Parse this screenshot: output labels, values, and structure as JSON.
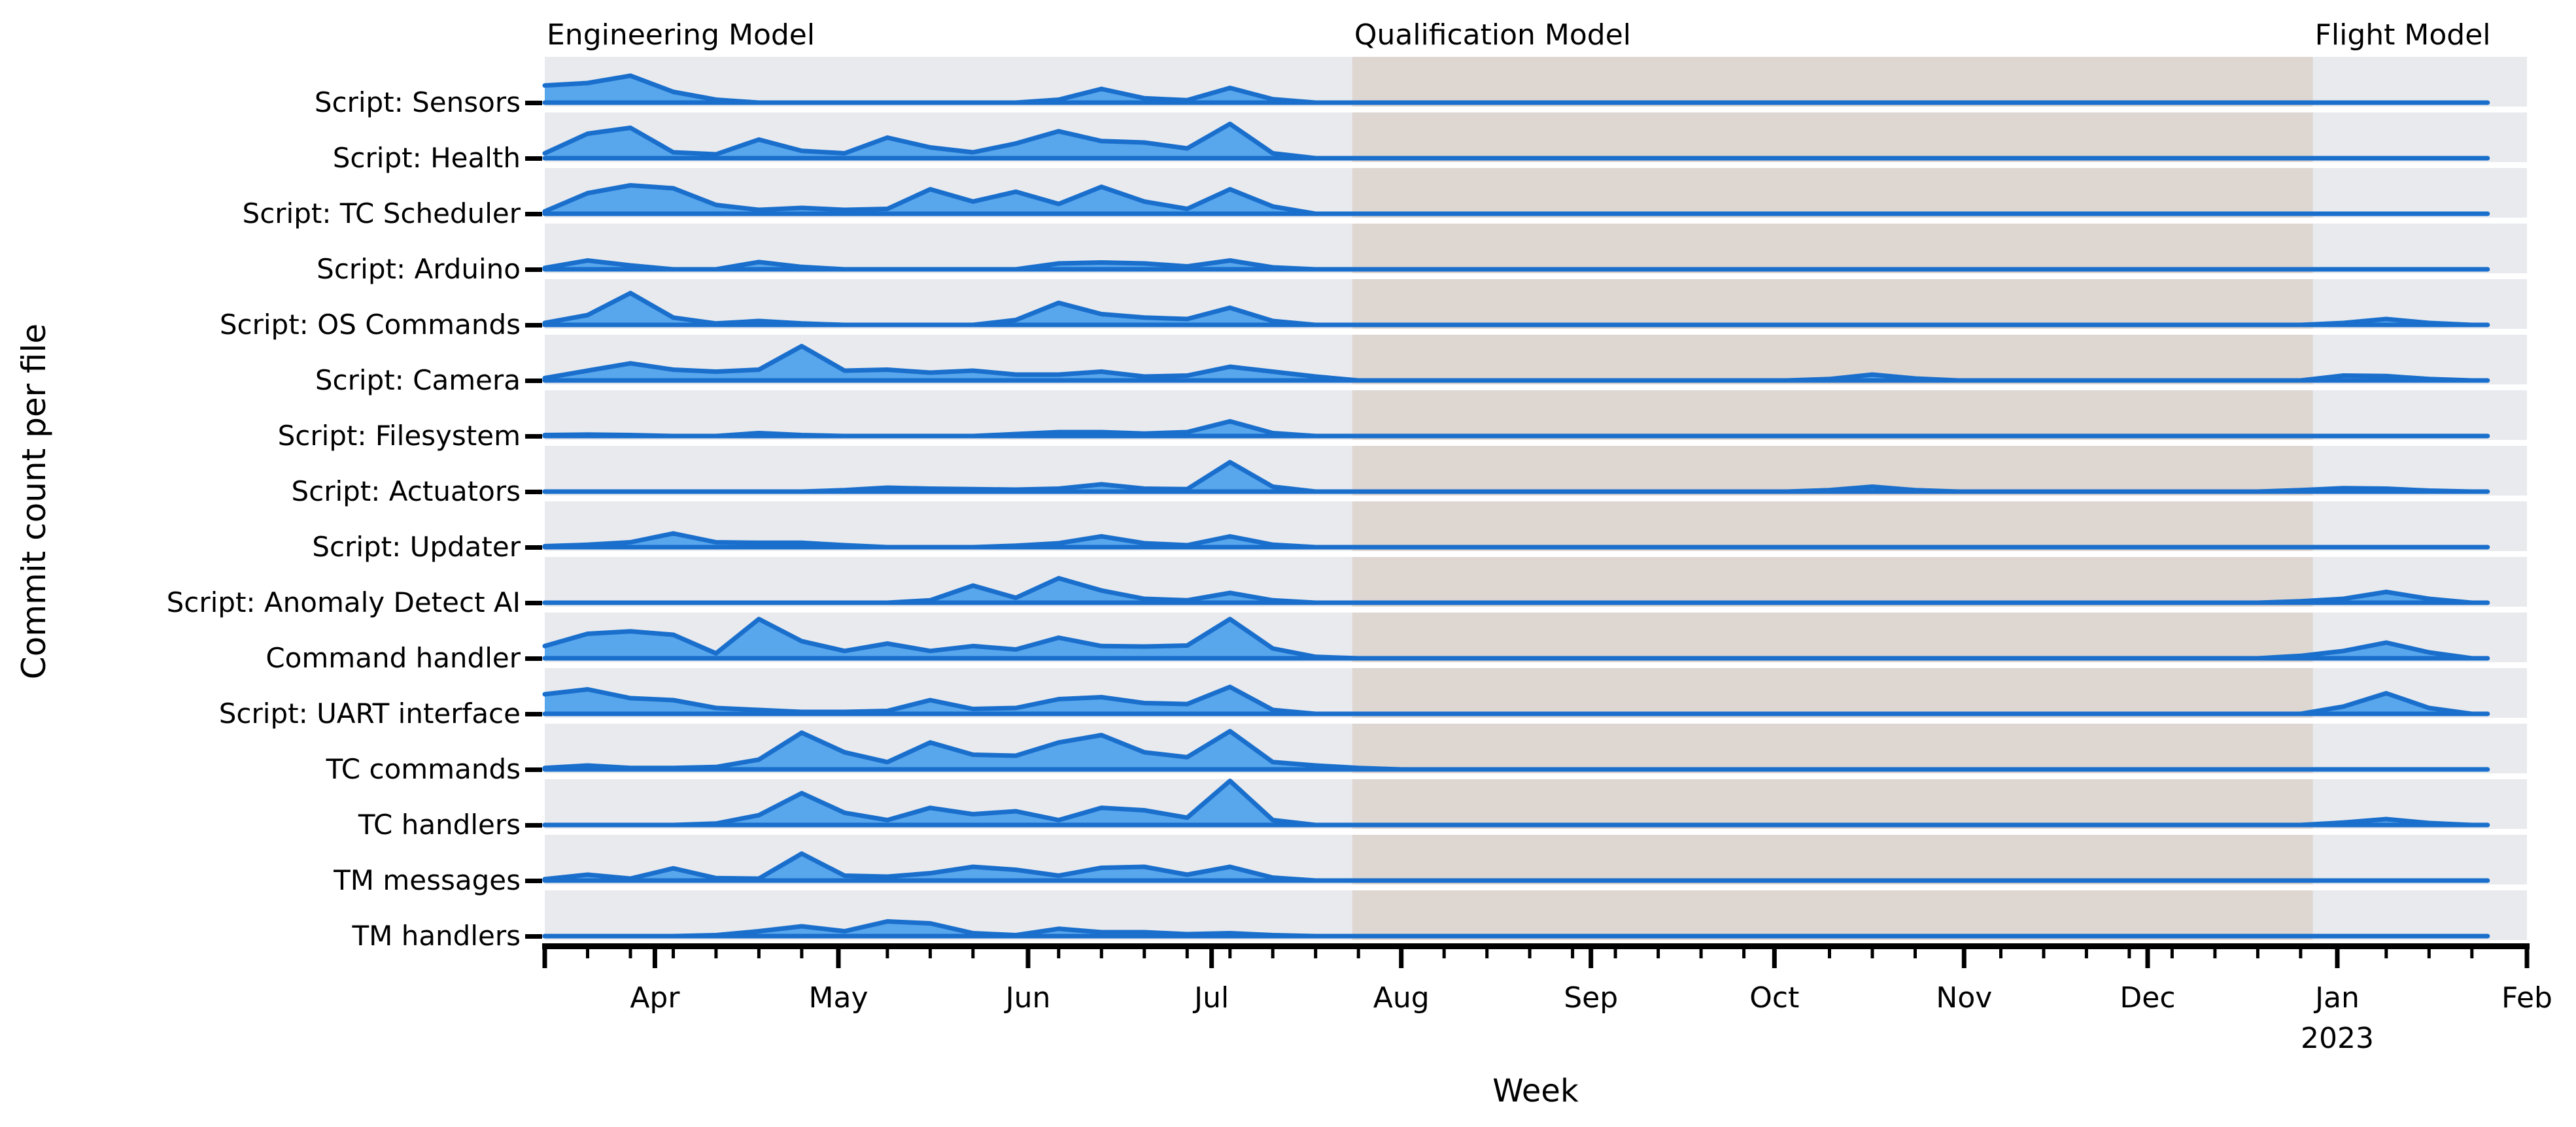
{
  "figure": {
    "background": "#ffffff",
    "kind": "ridgeline commit-activity chart"
  },
  "colors": {
    "band_background": "#e8eaee",
    "qualification_shading": "#ded6d1",
    "area_fill": "#58a6ec",
    "area_stroke": "#1a6fcc",
    "axis": "#000000",
    "text": "#000000"
  },
  "chart_data": {
    "type": "area",
    "variant": "ridgeline",
    "title": "",
    "xlabel": "Week",
    "ylabel": "Commit count per file",
    "x_start": "2022-03-14",
    "x_end": "2023-02-01",
    "x_total_days": 324,
    "x_step_days": 7,
    "grid": false,
    "legend": "none",
    "y_scale_note": "no y ticks shown; values are relative weekly commit-count heights, 10 = full band height",
    "x_ticks_months": [
      {
        "label": "Apr",
        "day": 18
      },
      {
        "label": "May",
        "day": 48
      },
      {
        "label": "Jun",
        "day": 79
      },
      {
        "label": "Jul",
        "day": 109
      },
      {
        "label": "Aug",
        "day": 140
      },
      {
        "label": "Sep",
        "day": 171
      },
      {
        "label": "Oct",
        "day": 201
      },
      {
        "label": "Nov",
        "day": 232
      },
      {
        "label": "Dec",
        "day": 262
      },
      {
        "label": "Jan",
        "day": 293,
        "year": "2023"
      },
      {
        "label": "Feb",
        "day": 324
      }
    ],
    "x_tick_year": {
      "label": "2023",
      "under": "Jan"
    },
    "phases": [
      {
        "name": "Engineering Model",
        "start_day": 0,
        "end_day": 132,
        "shaded": false
      },
      {
        "name": "Qualification Model",
        "start_day": 132,
        "end_day": 289,
        "shaded": true
      },
      {
        "name": "Flight Model",
        "start_day": 289,
        "end_day": 324,
        "shaded": false
      }
    ],
    "series": [
      {
        "name": "Script: Sensors",
        "values": [
          3.5,
          4,
          5.5,
          2.2,
          0.6,
          0,
          0,
          0,
          0,
          0,
          0,
          0,
          0.6,
          2.8,
          0.9,
          0.5,
          3,
          0.7,
          0,
          0,
          0,
          0,
          0,
          0,
          0,
          0,
          0,
          0,
          0,
          0,
          0,
          0,
          0,
          0,
          0,
          0,
          0,
          0,
          0,
          0,
          0,
          0,
          0,
          0,
          0,
          0
        ]
      },
      {
        "name": "Script: Health",
        "values": [
          1,
          5,
          6.2,
          1.2,
          0.8,
          3.8,
          1.5,
          1,
          4.2,
          2.2,
          1.2,
          3,
          5.5,
          3.5,
          3.2,
          2,
          7,
          1,
          0,
          0,
          0,
          0,
          0,
          0,
          0,
          0,
          0,
          0,
          0,
          0,
          0,
          0,
          0,
          0,
          0,
          0,
          0,
          0,
          0,
          0,
          0,
          0,
          0,
          0,
          0,
          0
        ]
      },
      {
        "name": "Script: TC Scheduler",
        "values": [
          0.5,
          4.2,
          5.8,
          5.2,
          1.8,
          0.8,
          1.2,
          0.8,
          1,
          5,
          2.5,
          4.5,
          2,
          5.5,
          2.5,
          1,
          5,
          1.5,
          0,
          0,
          0,
          0,
          0,
          0,
          0,
          0,
          0,
          0,
          0,
          0,
          0,
          0,
          0,
          0,
          0,
          0,
          0,
          0,
          0,
          0,
          0,
          0,
          0,
          0,
          0,
          0
        ]
      },
      {
        "name": "Script: Arduino",
        "values": [
          0.3,
          1.8,
          0.8,
          0,
          0,
          1.5,
          0.5,
          0,
          0,
          0,
          0,
          0,
          1.2,
          1.4,
          1.2,
          0.6,
          1.8,
          0.4,
          0,
          0,
          0,
          0,
          0,
          0,
          0,
          0,
          0,
          0,
          0,
          0,
          0,
          0,
          0,
          0,
          0,
          0,
          0,
          0,
          0,
          0,
          0,
          0,
          0,
          0,
          0,
          0
        ]
      },
      {
        "name": "Script: OS Commands",
        "values": [
          0.4,
          2,
          6.5,
          1.5,
          0.3,
          0.8,
          0.3,
          0,
          0,
          0,
          0,
          1,
          4.5,
          2.2,
          1.5,
          1.2,
          3.5,
          0.8,
          0,
          0,
          0,
          0,
          0,
          0,
          0,
          0,
          0,
          0,
          0,
          0,
          0,
          0,
          0,
          0,
          0,
          0,
          0,
          0,
          0,
          0,
          0,
          0,
          0.4,
          1.2,
          0.4,
          0
        ]
      },
      {
        "name": "Script: Camera",
        "values": [
          0.5,
          2,
          3.5,
          2.2,
          1.8,
          2.2,
          7,
          2,
          2.2,
          1.6,
          2,
          1.2,
          1.2,
          1.8,
          0.8,
          1,
          2.8,
          1.8,
          0.8,
          0,
          0,
          0,
          0,
          0,
          0,
          0,
          0,
          0,
          0,
          0,
          0.3,
          1.2,
          0.4,
          0,
          0,
          0,
          0,
          0,
          0,
          0,
          0,
          0,
          1,
          0.9,
          0.3,
          0
        ]
      },
      {
        "name": "Script: Filesystem",
        "values": [
          0.2,
          0.3,
          0.2,
          0,
          0,
          0.6,
          0.2,
          0,
          0,
          0,
          0,
          0.4,
          0.8,
          0.8,
          0.5,
          0.8,
          3,
          0.6,
          0,
          0,
          0,
          0,
          0,
          0,
          0,
          0,
          0,
          0,
          0,
          0,
          0,
          0,
          0,
          0,
          0,
          0,
          0,
          0,
          0,
          0,
          0,
          0,
          0,
          0,
          0,
          0
        ]
      },
      {
        "name": "Script: Actuators",
        "values": [
          0,
          0,
          0,
          0,
          0,
          0,
          0,
          0.3,
          0.8,
          0.6,
          0.5,
          0.4,
          0.6,
          1.5,
          0.6,
          0.5,
          6,
          1,
          0,
          0,
          0,
          0,
          0,
          0,
          0,
          0,
          0,
          0,
          0,
          0,
          0.3,
          1,
          0.3,
          0,
          0,
          0,
          0,
          0,
          0,
          0,
          0,
          0.3,
          0.7,
          0.6,
          0.2,
          0
        ]
      },
      {
        "name": "Script: Updater",
        "values": [
          0.2,
          0.5,
          1,
          2.8,
          1,
          0.9,
          0.9,
          0.4,
          0,
          0,
          0,
          0.3,
          0.8,
          2.2,
          0.8,
          0.4,
          2.2,
          0.5,
          0,
          0,
          0,
          0,
          0,
          0,
          0,
          0,
          0,
          0,
          0,
          0,
          0,
          0,
          0,
          0,
          0,
          0,
          0,
          0,
          0,
          0,
          0,
          0,
          0,
          0,
          0,
          0
        ]
      },
      {
        "name": "Script: Anomaly Detect AI",
        "values": [
          0,
          0,
          0,
          0,
          0,
          0,
          0,
          0,
          0,
          0.5,
          3.5,
          1,
          5,
          2.5,
          0.8,
          0.5,
          2,
          0.5,
          0,
          0,
          0,
          0,
          0,
          0,
          0,
          0,
          0,
          0,
          0,
          0,
          0,
          0,
          0,
          0,
          0,
          0,
          0,
          0,
          0,
          0,
          0,
          0.3,
          0.8,
          2.2,
          0.8,
          0
        ]
      },
      {
        "name": "Command handler",
        "values": [
          2.5,
          5,
          5.5,
          4.8,
          1,
          8,
          3.5,
          1.5,
          3,
          1.5,
          2.5,
          1.8,
          4.2,
          2.5,
          2.4,
          2.6,
          8,
          2,
          0.3,
          0,
          0,
          0,
          0,
          0,
          0,
          0,
          0,
          0,
          0,
          0,
          0,
          0,
          0,
          0,
          0,
          0,
          0,
          0,
          0,
          0,
          0,
          0.5,
          1.5,
          3.2,
          1.2,
          0
        ]
      },
      {
        "name": "Script: UART interface",
        "values": [
          4,
          5,
          3.2,
          2.8,
          1.2,
          0.8,
          0.4,
          0.4,
          0.6,
          2.8,
          1,
          1.2,
          3,
          3.4,
          2.2,
          2,
          5.5,
          0.8,
          0,
          0,
          0,
          0,
          0,
          0,
          0,
          0,
          0,
          0,
          0,
          0,
          0,
          0,
          0,
          0,
          0,
          0,
          0,
          0,
          0,
          0,
          0,
          0,
          1.5,
          4.2,
          1.2,
          0
        ]
      },
      {
        "name": "TC commands",
        "values": [
          0.3,
          0.8,
          0.3,
          0.3,
          0.5,
          2,
          7.5,
          3.5,
          1.5,
          5.5,
          3,
          2.8,
          5.5,
          7,
          3.5,
          2.5,
          7.8,
          1.5,
          0.8,
          0.3,
          0,
          0,
          0,
          0,
          0,
          0,
          0,
          0,
          0,
          0,
          0,
          0,
          0,
          0,
          0,
          0,
          0,
          0,
          0,
          0,
          0,
          0,
          0,
          0,
          0,
          0
        ]
      },
      {
        "name": "TC handlers",
        "values": [
          0,
          0,
          0,
          0,
          0.3,
          2,
          6.5,
          2.5,
          1,
          3.5,
          2.2,
          2.8,
          1,
          3.5,
          3,
          1.5,
          9,
          1,
          0,
          0,
          0,
          0,
          0,
          0,
          0,
          0,
          0,
          0,
          0,
          0,
          0,
          0,
          0,
          0,
          0,
          0,
          0,
          0,
          0,
          0,
          0,
          0,
          0.5,
          1.2,
          0.4,
          0
        ]
      },
      {
        "name": "TM messages",
        "values": [
          0.3,
          1.2,
          0.4,
          2.5,
          0.5,
          0.4,
          5.5,
          1,
          0.8,
          1.5,
          2.8,
          2.2,
          1,
          2.6,
          2.8,
          1.2,
          2.8,
          0.6,
          0,
          0,
          0,
          0,
          0,
          0,
          0,
          0,
          0,
          0,
          0,
          0,
          0,
          0,
          0,
          0,
          0,
          0,
          0,
          0,
          0,
          0,
          0,
          0,
          0,
          0,
          0,
          0
        ]
      },
      {
        "name": "TM handlers",
        "values": [
          0,
          0,
          0,
          0,
          0.2,
          1,
          2,
          1,
          3,
          2.6,
          0.6,
          0.2,
          1.5,
          0.8,
          0.8,
          0.4,
          0.6,
          0.2,
          0,
          0,
          0,
          0,
          0,
          0,
          0,
          0,
          0,
          0,
          0,
          0,
          0,
          0,
          0,
          0,
          0,
          0,
          0,
          0,
          0,
          0,
          0,
          0,
          0,
          0,
          0,
          0
        ]
      }
    ]
  }
}
